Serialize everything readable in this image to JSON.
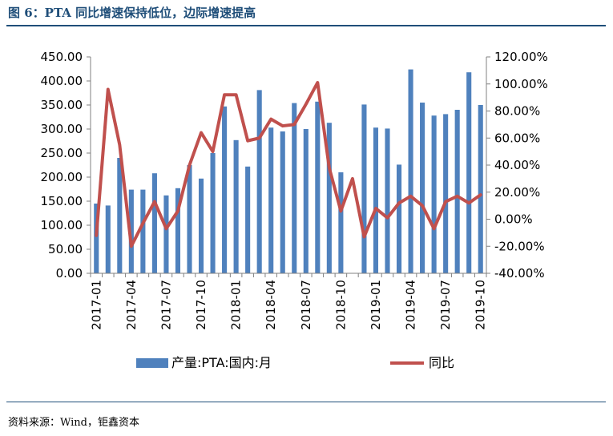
{
  "header": {
    "title": "图 6：PTA 同比增速保持低位，边际增速提高"
  },
  "footer": {
    "source": "资料来源：Wind，钜鑫资本"
  },
  "colors": {
    "bar": "#4f81bd",
    "line": "#c0504d",
    "title": "#1f4e79",
    "axis": "#808080"
  },
  "chart_data": {
    "type": "bar",
    "title": "",
    "xlabel": "",
    "ylabel": "",
    "categories": [
      "2017-01",
      "2017-02",
      "2017-03",
      "2017-04",
      "2017-05",
      "2017-06",
      "2017-07",
      "2017-08",
      "2017-09",
      "2017-10",
      "2017-11",
      "2017-12",
      "2018-01",
      "2018-02",
      "2018-03",
      "2018-04",
      "2018-05",
      "2018-06",
      "2018-07",
      "2018-08",
      "2018-09",
      "2018-10",
      "2018-11",
      "2018-12",
      "2019-01",
      "2019-02",
      "2019-03",
      "2019-04",
      "2019-05",
      "2019-06",
      "2019-07",
      "2019-08",
      "2019-09",
      "2019-10"
    ],
    "x_tick_labels": [
      "2017-01",
      "2017-04",
      "2017-07",
      "2017-10",
      "2018-01",
      "2018-04",
      "2018-07",
      "2018-10",
      "2019-01",
      "2019-04",
      "2019-07",
      "2019-10"
    ],
    "series": [
      {
        "name": "产量:PTA:国内:月",
        "type": "bar",
        "axis": "left",
        "values": [
          145,
          141,
          240,
          174,
          174,
          208,
          162,
          177,
          225,
          197,
          250,
          347,
          277,
          222,
          381,
          303,
          295,
          354,
          300,
          357,
          313,
          210,
          null,
          351,
          303,
          301,
          226,
          424,
          355,
          328,
          331,
          340,
          418,
          350
        ]
      },
      {
        "name": "同比",
        "type": "line",
        "axis": "right",
        "values": [
          -12,
          96,
          55,
          -20,
          -3,
          13,
          -7,
          6,
          40,
          64,
          50,
          92,
          92,
          58,
          60,
          74,
          69,
          70,
          85,
          101,
          38,
          6,
          30,
          -13,
          8,
          1,
          12,
          17,
          10,
          -7,
          13,
          17,
          12,
          18
        ]
      }
    ],
    "left_axis": {
      "ylim": [
        0,
        450
      ],
      "ticks": [
        "0.00",
        "50.00",
        "100.00",
        "150.00",
        "200.00",
        "250.00",
        "300.00",
        "350.00",
        "400.00",
        "450.00"
      ]
    },
    "right_axis": {
      "ylim": [
        -40,
        120
      ],
      "ticks": [
        "-40.00%",
        "-20.00%",
        "0.00%",
        "20.00%",
        "40.00%",
        "60.00%",
        "80.00%",
        "100.00%",
        "120.00%"
      ]
    },
    "grid": false,
    "legend_position": "bottom"
  }
}
